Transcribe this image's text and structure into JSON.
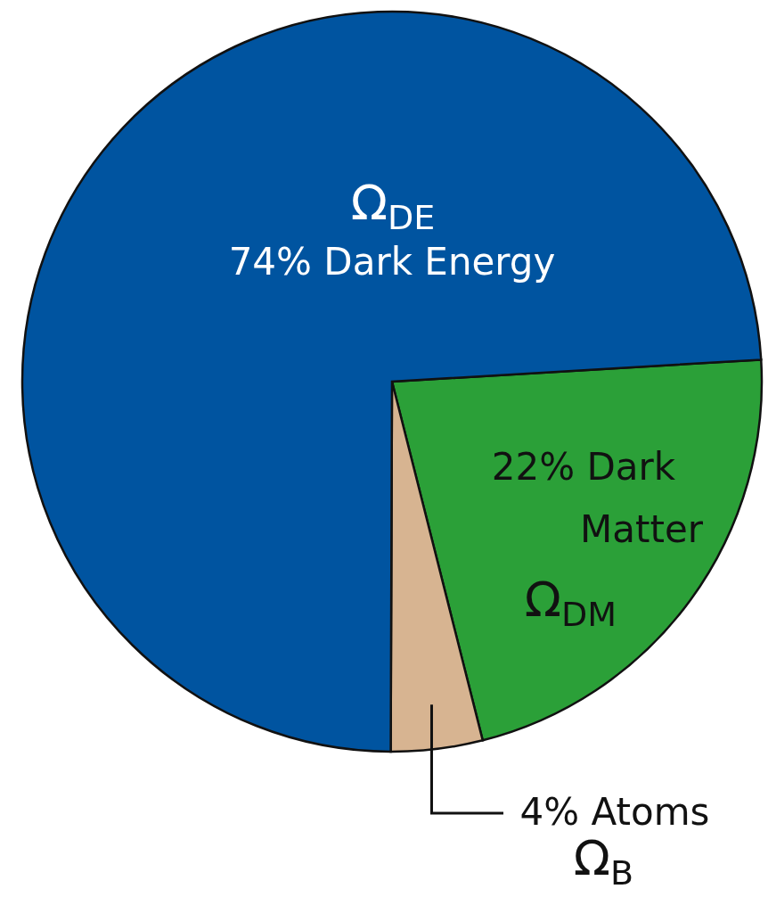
{
  "chart_data": {
    "type": "pie",
    "categories": [
      "Dark Matter",
      "Atoms",
      "Dark Energy"
    ],
    "values": [
      22,
      4,
      74
    ],
    "colors": [
      "#2ba038",
      "#d7b491",
      "#0054a0"
    ],
    "value_labels": [
      "22%",
      "4%",
      "74%"
    ],
    "annotations": [
      "Ω$_{DM}$",
      "Ω$_{B}$",
      "Ω$_{DE}$"
    ]
  }
}
